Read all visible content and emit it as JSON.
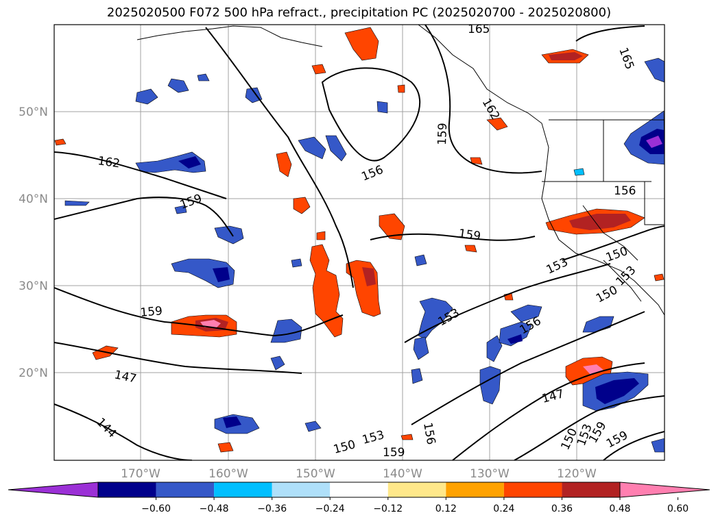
{
  "map": {
    "title": "2025020500 F072 500 hPa refract., precipitation PC (2025020700 - 2025020800)",
    "lat_labels": [
      "50°N",
      "40°N",
      "30°N",
      "20°N"
    ],
    "lon_labels": [
      "170°W",
      "160°W",
      "150°W",
      "140°W",
      "130°W",
      "120°W"
    ],
    "contour_labels": [
      "165",
      "165",
      "162",
      "159",
      "162",
      "156",
      "159",
      "156",
      "159",
      "159",
      "153",
      "150",
      "153",
      "150",
      "153",
      "156",
      "147",
      "159",
      "147",
      "144",
      "150",
      "153",
      "159",
      "156",
      "150",
      "153",
      "159"
    ]
  },
  "colorbar": {
    "ticks": [
      "−0.60",
      "−0.48",
      "−0.36",
      "−0.24",
      "−0.12",
      "0.12",
      "0.24",
      "0.36",
      "0.48",
      "0.60"
    ],
    "colors": [
      "#9b30d6",
      "#00008b",
      "#3558c8",
      "#00bfff",
      "#afe0fa",
      "#ffffff",
      "#ffe88a",
      "#ffa200",
      "#ff4500",
      "#b22222",
      "#ff7fb0"
    ]
  }
}
